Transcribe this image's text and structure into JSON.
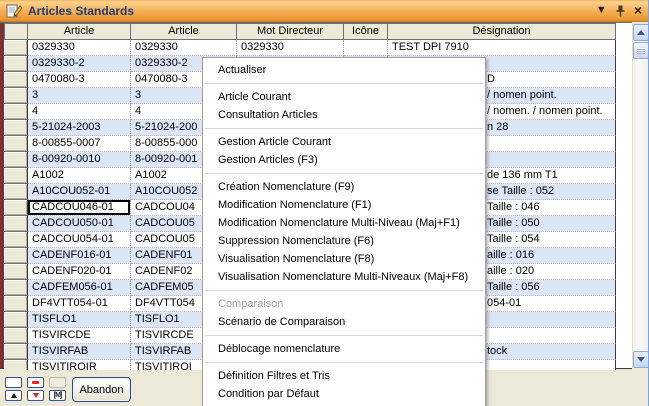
{
  "titlebar": {
    "title": "Articles Standards",
    "min_arrow": "▼",
    "close_glyph": "×"
  },
  "grid": {
    "headers": {
      "selector": "",
      "article1": "Article",
      "article2": "Article",
      "mot": "Mot Directeur",
      "icone": "Icône",
      "designation": "Désignation"
    },
    "rows": [
      {
        "article1": "0329330",
        "article2": "0329330",
        "mot": "0329330",
        "icone": "",
        "designation": "TEST DPI 7910",
        "frag": false,
        "focused": false
      },
      {
        "article1": "0329330-2",
        "article2": "0329330-2",
        "mot": "",
        "icone": "",
        "designation": "",
        "frag": false,
        "focused": false
      },
      {
        "article1": "0470080-3",
        "article2": "0470080-3",
        "mot": "",
        "icone": "",
        "designation": "D",
        "frag": true,
        "focused": false
      },
      {
        "article1": "3",
        "article2": "3",
        "mot": "",
        "icone": "",
        "designation": "/ nomen point.",
        "frag": true,
        "focused": false
      },
      {
        "article1": "4",
        "article2": "4",
        "mot": "",
        "icone": "",
        "designation": "/ nomen. / nomen point.",
        "frag": true,
        "focused": false
      },
      {
        "article1": "5-21024-2003",
        "article2": "5-21024-200",
        "mot": "",
        "icone": "",
        "designation": "n 28",
        "frag": true,
        "focused": false
      },
      {
        "article1": "8-00855-0007",
        "article2": "8-00855-000",
        "mot": "",
        "icone": "",
        "designation": "",
        "frag": false,
        "focused": false
      },
      {
        "article1": "8-00920-0010",
        "article2": "8-00920-001",
        "mot": "",
        "icone": "",
        "designation": "",
        "frag": false,
        "focused": false
      },
      {
        "article1": "A1002",
        "article2": "A1002",
        "mot": "",
        "icone": "",
        "designation": "de 136 mm T1",
        "frag": true,
        "focused": false
      },
      {
        "article1": "A10COU052-01",
        "article2": "A10COU052",
        "mot": "",
        "icone": "",
        "designation": "se Taille : 052",
        "frag": true,
        "focused": false
      },
      {
        "article1": "CADCOU046-01",
        "article2": "CADCOU04",
        "mot": "",
        "icone": "",
        "designation": "Taille : 046",
        "frag": true,
        "focused": true
      },
      {
        "article1": "CADCOU050-01",
        "article2": "CADCOU05",
        "mot": "",
        "icone": "",
        "designation": "Taille : 050",
        "frag": true,
        "focused": false
      },
      {
        "article1": "CADCOU054-01",
        "article2": "CADCOU05",
        "mot": "",
        "icone": "",
        "designation": "Taille : 054",
        "frag": true,
        "focused": false
      },
      {
        "article1": "CADENF016-01",
        "article2": "CADENF01",
        "mot": "",
        "icone": "",
        "designation": "aille : 016",
        "frag": true,
        "focused": false
      },
      {
        "article1": "CADENF020-01",
        "article2": "CADENF02",
        "mot": "",
        "icone": "",
        "designation": "aille : 020",
        "frag": true,
        "focused": false
      },
      {
        "article1": "CADFEM056-01",
        "article2": "CADFEM05",
        "mot": "",
        "icone": "",
        "designation": "Taille : 056",
        "frag": true,
        "focused": false
      },
      {
        "article1": "DF4VTT054-01",
        "article2": "DF4VTT054",
        "mot": "",
        "icone": "",
        "designation": "054-01",
        "frag": true,
        "focused": false
      },
      {
        "article1": "TISFLO1",
        "article2": "TISFLO1",
        "mot": "",
        "icone": "",
        "designation": "",
        "frag": false,
        "focused": false
      },
      {
        "article1": "TISVIRCDE",
        "article2": "TISVIRCDE",
        "mot": "",
        "icone": "",
        "designation": "",
        "frag": false,
        "focused": false
      },
      {
        "article1": "TISVIRFAB",
        "article2": "TISVIRFAB",
        "mot": "",
        "icone": "",
        "designation": "tock",
        "frag": true,
        "focused": false
      },
      {
        "article1": "TISVITIROIR",
        "article2": "TISVITIROI",
        "mot": "",
        "icone": "",
        "designation": "",
        "frag": false,
        "focused": false
      }
    ]
  },
  "menu": {
    "items": [
      {
        "label": "Actualiser",
        "disabled": false
      },
      {
        "sep": true
      },
      {
        "label": "Article Courant",
        "disabled": false
      },
      {
        "label": "Consultation Articles",
        "disabled": false
      },
      {
        "sep": true
      },
      {
        "label": "Gestion Article Courant",
        "disabled": false
      },
      {
        "label": "Gestion Articles (F3)",
        "disabled": false
      },
      {
        "sep": true
      },
      {
        "label": "Création Nomenclature (F9)",
        "disabled": false
      },
      {
        "label": "Modification Nomenclature (F1)",
        "disabled": false
      },
      {
        "label": "Modification Nomenclature Multi-Niveau (Maj+F1)",
        "disabled": false
      },
      {
        "label": "Suppression Nomenclature (F6)",
        "disabled": false
      },
      {
        "label": "Visualisation Nomenclature (F8)",
        "disabled": false
      },
      {
        "label": "Visualisation Nomenclature Multi-Niveaux (Maj+F8)",
        "disabled": false
      },
      {
        "sep": true
      },
      {
        "label": "Comparaison",
        "disabled": true
      },
      {
        "label": "Scénario de Comparaison",
        "disabled": false
      },
      {
        "sep": true
      },
      {
        "label": "Déblocage nomenclature",
        "disabled": false
      },
      {
        "sep": true
      },
      {
        "label": "Définition Filtres et Tris",
        "disabled": false
      },
      {
        "label": "Condition par Défaut",
        "disabled": false
      }
    ]
  },
  "footer": {
    "abandon_label": "Abandon",
    "nav_m_glyph": "[M]"
  },
  "colors": {
    "titlebar_orange": "#f5ae52",
    "title_text": "#1c3e7a",
    "row_alt_blue": "#dce6f7",
    "panel_beige": "#ece9d8",
    "left_strip_maroon": "#7d3131",
    "disabled_menu_gray": "#a5a29d",
    "nav_red": "#e02a1f"
  }
}
